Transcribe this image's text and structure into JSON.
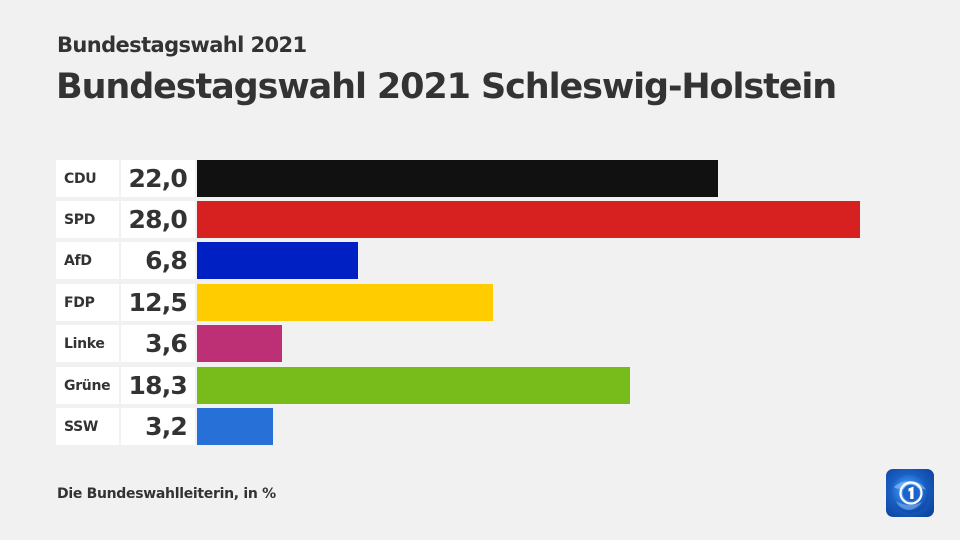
{
  "header": {
    "supertitle": "Bundestagswahl 2021",
    "title": "Bundestagswahl 2021 Schleswig-Holstein"
  },
  "footer": {
    "source": "Die Bundeswahlleiterin, in %"
  },
  "logo": {
    "icon": "tagesschau-globe-one-icon",
    "color": "#1a5fc4"
  },
  "rows": [
    {
      "label": "CDU",
      "value_text": "22,0",
      "value": 22.0,
      "color": "#111111"
    },
    {
      "label": "SPD",
      "value_text": "28,0",
      "value": 28.0,
      "color": "#d72020"
    },
    {
      "label": "AfD",
      "value_text": "6,8",
      "value": 6.8,
      "color": "#0020c4"
    },
    {
      "label": "FDP",
      "value_text": "12,5",
      "value": 12.5,
      "color": "#ffcc00"
    },
    {
      "label": "Linke",
      "value_text": "3,6",
      "value": 3.6,
      "color": "#be3075"
    },
    {
      "label": "Grüne",
      "value_text": "18,3",
      "value": 18.3,
      "color": "#78bc1b"
    },
    {
      "label": "SSW",
      "value_text": "3,2",
      "value": 3.2,
      "color": "#2670d8"
    }
  ],
  "chart_data": {
    "type": "bar",
    "orientation": "horizontal",
    "title": "Bundestagswahl 2021 Schleswig-Holstein",
    "subtitle": "Bundestagswahl 2021",
    "categories": [
      "CDU",
      "SPD",
      "AfD",
      "FDP",
      "Linke",
      "Grüne",
      "SSW"
    ],
    "values": [
      22.0,
      28.0,
      6.8,
      12.5,
      3.6,
      18.3,
      3.2
    ],
    "value_labels": [
      "22,0",
      "28,0",
      "6,8",
      "12,5",
      "3,6",
      "18,3",
      "3,2"
    ],
    "colors": [
      "#111111",
      "#d72020",
      "#0020c4",
      "#ffcc00",
      "#be3075",
      "#78bc1b",
      "#2670d8"
    ],
    "xlabel": "",
    "ylabel": "",
    "unit": "%",
    "source": "Die Bundeswahlleiterin, in %",
    "grid": false,
    "legend": "none",
    "xlim": [
      0,
      28.0
    ]
  }
}
